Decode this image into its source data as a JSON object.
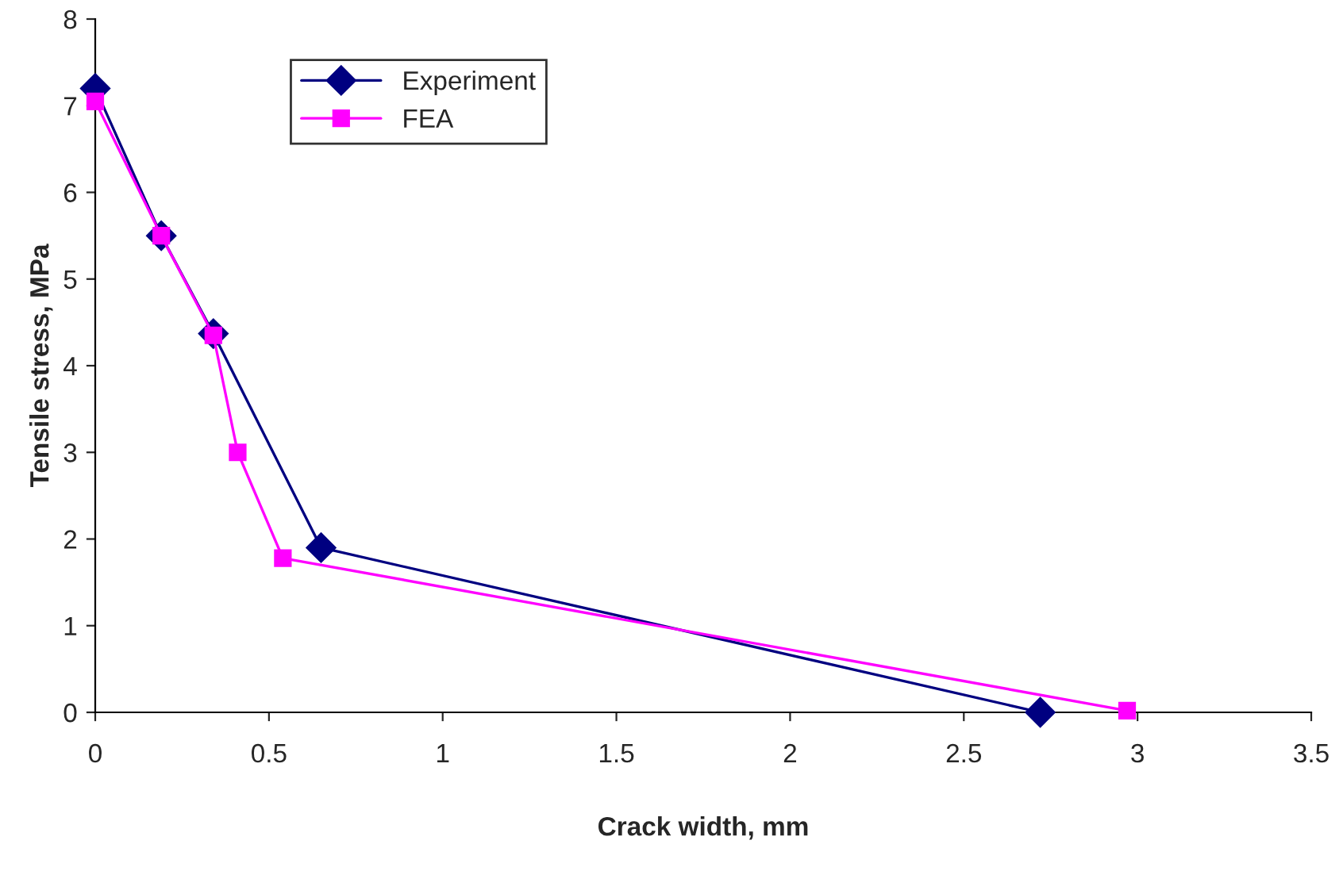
{
  "chart_data": {
    "type": "line",
    "xlabel": "Crack width, mm",
    "ylabel": "Tensile stress, MPa",
    "xlim": [
      0,
      3.5
    ],
    "xticks": [
      0,
      0.5,
      1,
      1.5,
      2,
      2.5,
      3,
      3.5
    ],
    "ylim": [
      0,
      8
    ],
    "yticks": [
      0,
      1,
      2,
      3,
      4,
      5,
      6,
      7,
      8
    ],
    "grid": false,
    "legend": "top left",
    "series": [
      {
        "name": "Experiment",
        "color": "#000080",
        "marker": "diamond",
        "x": [
          0,
          0.19,
          0.34,
          0.65,
          2.72
        ],
        "values": [
          7.2,
          5.5,
          4.37,
          1.9,
          0
        ]
      },
      {
        "name": "FEA",
        "color": "#ff00ff",
        "marker": "square",
        "x": [
          0,
          0.19,
          0.34,
          0.41,
          0.54,
          2.97
        ],
        "values": [
          7.05,
          5.5,
          4.35,
          3.0,
          1.78,
          0.02
        ]
      }
    ]
  }
}
